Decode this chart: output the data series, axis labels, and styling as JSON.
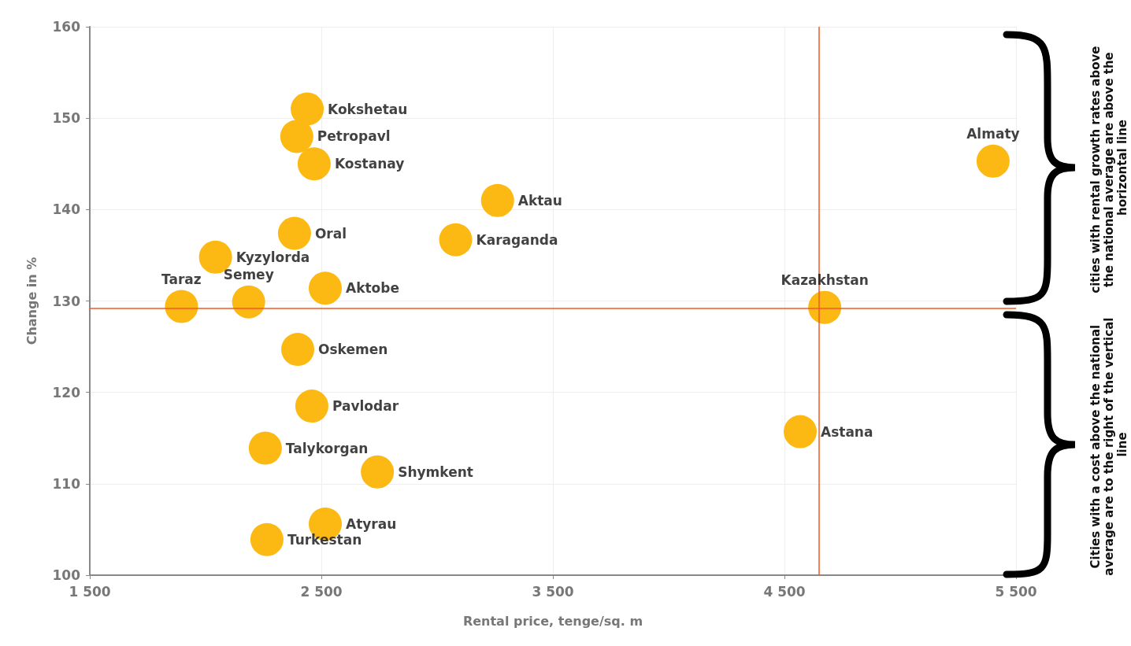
{
  "chart_data": {
    "type": "scatter",
    "xlabel": "Rental price, tenge/sq. m",
    "ylabel": "Change in %",
    "x": [
      2439,
      2394,
      2469,
      3261,
      5401,
      2043,
      2384,
      3080,
      2186,
      2517,
      1896,
      4674,
      2398,
      2459,
      4568,
      2258,
      2742,
      2517,
      2265
    ],
    "values": [
      151.0,
      148.0,
      145.0,
      141.0,
      145.3,
      134.8,
      137.4,
      136.7,
      129.9,
      131.4,
      129.4,
      129.3,
      124.7,
      118.5,
      115.7,
      113.9,
      111.3,
      105.6,
      103.9
    ],
    "color": "#fdb913",
    "marker": "circle",
    "grid": true,
    "xlim": [
      1500,
      5500
    ],
    "xticks": [
      {
        "value": 1500,
        "label": "1 500"
      },
      {
        "value": 2500,
        "label": "2 500"
      },
      {
        "value": 3500,
        "label": "3 500"
      },
      {
        "value": 4500,
        "label": "4 500"
      },
      {
        "value": 5500,
        "label": "5 500"
      }
    ],
    "ylim": [
      100,
      160
    ],
    "yticks": [
      100,
      110,
      120,
      130,
      140,
      150,
      160
    ],
    "ref_lines": [
      {
        "axis": "x",
        "value": 4650,
        "color": "#f15a24"
      },
      {
        "axis": "y",
        "value": 129.2,
        "color": "#f15a24"
      }
    ],
    "annotations": [
      {
        "text": "Kokshetau",
        "x": 2439,
        "y": 151.0
      },
      {
        "text": "Petropavl",
        "x": 2394,
        "y": 148.0
      },
      {
        "text": "Kostanay",
        "x": 2469,
        "y": 145.0
      },
      {
        "text": "Aktau",
        "x": 3261,
        "y": 141.0
      },
      {
        "text": "Almaty",
        "x": 5401,
        "y": 145.3
      },
      {
        "text": "Kyzylorda",
        "x": 2043,
        "y": 134.8
      },
      {
        "text": "Oral",
        "x": 2384,
        "y": 137.4
      },
      {
        "text": "Karaganda",
        "x": 3080,
        "y": 136.7
      },
      {
        "text": "Semey",
        "x": 2186,
        "y": 129.9
      },
      {
        "text": "Aktobe",
        "x": 2517,
        "y": 131.4
      },
      {
        "text": "Taraz",
        "x": 1896,
        "y": 129.4
      },
      {
        "text": "Kazakhstan",
        "x": 4674,
        "y": 129.3
      },
      {
        "text": "Oskemen",
        "x": 2398,
        "y": 124.7
      },
      {
        "text": "Pavlodar",
        "x": 2459,
        "y": 118.5
      },
      {
        "text": "Astana",
        "x": 4568,
        "y": 115.7
      },
      {
        "text": "Talykorgan",
        "x": 2258,
        "y": 113.9
      },
      {
        "text": "Shymkent",
        "x": 2742,
        "y": 111.3
      },
      {
        "text": "Atyrau",
        "x": 2517,
        "y": 105.6
      },
      {
        "text": "Turkestan",
        "x": 2265,
        "y": 103.9
      },
      "cities with rental growth rates above the national average are above the horizontal line",
      "Cities with a cost above the national average are to the right of the vertical line"
    ]
  }
}
